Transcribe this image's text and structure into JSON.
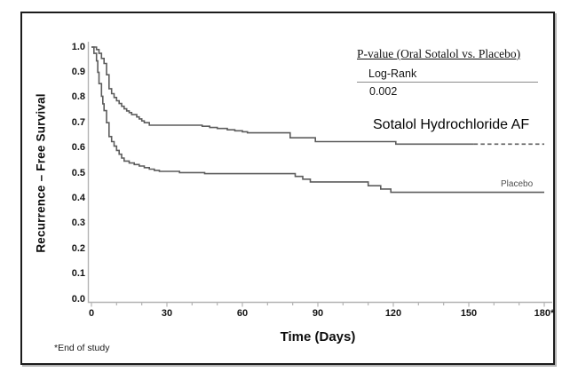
{
  "chart_data": {
    "type": "line",
    "subtype": "kaplan-meier-step",
    "title": "",
    "xlabel": "Time (Days)",
    "ylabel": "Recurrence – Free Survival",
    "xlim": [
      0,
      180
    ],
    "ylim": [
      0.0,
      1.0
    ],
    "grid": false,
    "xticks": [
      0,
      30,
      60,
      90,
      120,
      150,
      180
    ],
    "xtick_labels": [
      "0",
      "30",
      "60",
      "90",
      "120",
      "150",
      "180*"
    ],
    "yticks": [
      1.0,
      0.9,
      0.8,
      0.7,
      0.6,
      0.5,
      0.4,
      0.3,
      0.2,
      0.1,
      0.0
    ],
    "ytick_labels": [
      "1.0",
      "0.9",
      "0.8",
      "0.7",
      "0.6",
      "0.5",
      "0.4",
      "0.3",
      "0.2",
      "0.1",
      "0.0"
    ],
    "minor_xtick_interval": 10,
    "line_color": "#5c5c5c",
    "axis_color": "#b3b3b3",
    "series": [
      {
        "name": "Sotalol Hydrochloride AF",
        "tail_dashed_from_day": 152,
        "points": [
          [
            0,
            1.0
          ],
          [
            2,
            0.99
          ],
          [
            3,
            0.975
          ],
          [
            4,
            0.955
          ],
          [
            5,
            0.935
          ],
          [
            6,
            0.89
          ],
          [
            7,
            0.835
          ],
          [
            8,
            0.815
          ],
          [
            9,
            0.8
          ],
          [
            10,
            0.787
          ],
          [
            11,
            0.776
          ],
          [
            12,
            0.765
          ],
          [
            13,
            0.755
          ],
          [
            14,
            0.747
          ],
          [
            15,
            0.74
          ],
          [
            16,
            0.732
          ],
          [
            18,
            0.723
          ],
          [
            19,
            0.715
          ],
          [
            20,
            0.707
          ],
          [
            21,
            0.7
          ],
          [
            23,
            0.69
          ],
          [
            44,
            0.686
          ],
          [
            47,
            0.681
          ],
          [
            50,
            0.677
          ],
          [
            54,
            0.672
          ],
          [
            57,
            0.668
          ],
          [
            60,
            0.664
          ],
          [
            62,
            0.66
          ],
          [
            79,
            0.64
          ],
          [
            89,
            0.625
          ],
          [
            121,
            0.615
          ],
          [
            180,
            0.615
          ]
        ]
      },
      {
        "name": "Placebo",
        "points": [
          [
            0,
            1.0
          ],
          [
            1,
            0.975
          ],
          [
            2,
            0.945
          ],
          [
            2.5,
            0.9
          ],
          [
            3,
            0.855
          ],
          [
            4,
            0.805
          ],
          [
            4.5,
            0.775
          ],
          [
            5,
            0.748
          ],
          [
            6,
            0.7
          ],
          [
            7,
            0.645
          ],
          [
            8,
            0.625
          ],
          [
            9,
            0.607
          ],
          [
            10,
            0.59
          ],
          [
            11,
            0.575
          ],
          [
            12,
            0.56
          ],
          [
            13,
            0.548
          ],
          [
            15,
            0.54
          ],
          [
            17,
            0.534
          ],
          [
            19,
            0.528
          ],
          [
            21,
            0.522
          ],
          [
            23,
            0.516
          ],
          [
            25,
            0.511
          ],
          [
            27,
            0.507
          ],
          [
            35,
            0.502
          ],
          [
            45,
            0.498
          ],
          [
            81,
            0.487
          ],
          [
            84,
            0.476
          ],
          [
            87,
            0.465
          ],
          [
            110,
            0.45
          ],
          [
            115,
            0.437
          ],
          [
            119,
            0.424
          ],
          [
            180,
            0.424
          ]
        ]
      }
    ],
    "stats": {
      "heading": "P-value (Oral Sotalol vs. Placebo)",
      "test": "Log-Rank",
      "p_value": "0.002"
    },
    "footnote": "*End of study"
  }
}
